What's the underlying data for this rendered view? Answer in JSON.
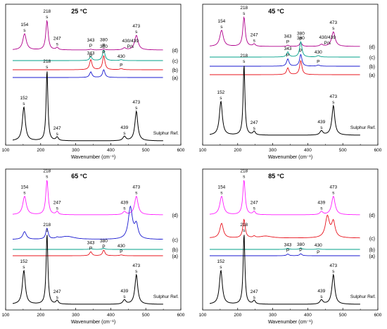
{
  "chart_data": [
    {
      "type": "line",
      "title": "25 °C",
      "xlabel": "Wavenumber (cm⁻¹)",
      "xlim": [
        100,
        600
      ],
      "xticks": [
        100,
        200,
        300,
        400,
        500,
        600
      ],
      "ref_label": "Sulphur Ref.",
      "traces": [
        {
          "label": "(d)",
          "color": "#b0008c",
          "peaks": [
            [
              154,
              0.42,
              6
            ],
            [
              218,
              0.76,
              4
            ],
            [
              247,
              0.06,
              4
            ],
            [
              343,
              0.02,
              4
            ],
            [
              380,
              0.03,
              4
            ],
            [
              439,
              0.05,
              5
            ],
            [
              473,
              0.38,
              6
            ]
          ],
          "annotations": [
            {
              "x": 154,
              "label": "s",
              "value": "154"
            },
            {
              "x": 218,
              "label": "s",
              "value": "218"
            },
            {
              "x": 247,
              "label": "s",
              "value": "247"
            },
            {
              "x": 343,
              "label": "P",
              "value": "343"
            },
            {
              "x": 380,
              "label": "P",
              "value": "380"
            },
            {
              "x": 456,
              "label": "P/s",
              "value": "430/439"
            },
            {
              "x": 473,
              "label": "s",
              "value": "473"
            }
          ]
        },
        {
          "label": "(c)",
          "color": "#00a08a",
          "peaks": [
            [
              343,
              0.14,
              4
            ],
            [
              380,
              0.38,
              4
            ],
            [
              430,
              0.03,
              5
            ]
          ],
          "annotations": [
            {
              "x": 343,
              "label": "",
              "value": "343"
            },
            {
              "x": 380,
              "label": "",
              "value": "380"
            },
            {
              "x": 430,
              "label": "",
              "value": "430"
            }
          ]
        },
        {
          "label": "(b)",
          "color": "#e8141e",
          "peaks": [
            [
              343,
              0.36,
              4
            ],
            [
              380,
              0.5,
              4
            ],
            [
              430,
              0.04,
              5
            ]
          ],
          "annotations": [
            {
              "x": 343,
              "label": "P",
              "value": ""
            },
            {
              "x": 380,
              "label": "P",
              "value": ""
            },
            {
              "x": 430,
              "label": "P",
              "value": ""
            }
          ]
        },
        {
          "label": "(a)",
          "color": "#1a1ad0",
          "peaks": [
            [
              343,
              0.2,
              4
            ],
            [
              380,
              0.28,
              4
            ]
          ],
          "annotations": []
        }
      ],
      "reference": {
        "color": "#000000",
        "peaks": [
          [
            152,
            0.48,
            5
          ],
          [
            218,
            1.0,
            3
          ],
          [
            247,
            0.05,
            4
          ],
          [
            439,
            0.06,
            5
          ],
          [
            473,
            0.42,
            5
          ]
        ],
        "annotations": [
          {
            "x": 152,
            "label": "s",
            "value": "152"
          },
          {
            "x": 218,
            "label": "s",
            "value": "218"
          },
          {
            "x": 247,
            "label": "s",
            "value": "247"
          },
          {
            "x": 439,
            "label": "s",
            "value": "439"
          },
          {
            "x": 473,
            "label": "s",
            "value": "473"
          }
        ]
      }
    },
    {
      "type": "line",
      "title": "45 °C",
      "xlabel": "Wavenumber (cm⁻¹)",
      "xlim": [
        100,
        600
      ],
      "xticks": [
        100,
        200,
        300,
        400,
        500,
        600
      ],
      "ref_label": "Sulphur Ref.",
      "traces": [
        {
          "label": "(d)",
          "color": "#b0008c",
          "peaks": [
            [
              154,
              0.42,
              6
            ],
            [
              218,
              0.76,
              4
            ],
            [
              247,
              0.06,
              4
            ],
            [
              343,
              0.03,
              4
            ],
            [
              380,
              0.1,
              4
            ],
            [
              439,
              0.05,
              5
            ],
            [
              473,
              0.38,
              6
            ]
          ],
          "annotations": [
            {
              "x": 154,
              "label": "s",
              "value": "154"
            },
            {
              "x": 218,
              "label": "s",
              "value": "218"
            },
            {
              "x": 247,
              "label": "s",
              "value": "247"
            },
            {
              "x": 343,
              "label": "P",
              "value": "343"
            },
            {
              "x": 380,
              "label": "P",
              "value": "380"
            },
            {
              "x": 456,
              "label": "P/s",
              "value": "430/439"
            },
            {
              "x": 473,
              "label": "s",
              "value": "473"
            }
          ]
        },
        {
          "label": "(c)",
          "color": "#00a08a",
          "peaks": [
            [
              343,
              0.18,
              4
            ],
            [
              380,
              0.55,
              4
            ],
            [
              430,
              0.05,
              5
            ]
          ],
          "annotations": [
            {
              "x": 343,
              "label": "",
              "value": "343"
            },
            {
              "x": 380,
              "label": "",
              "value": "380"
            },
            {
              "x": 430,
              "label": "",
              "value": "430"
            }
          ]
        },
        {
          "label": "(b)",
          "color": "#1a1ad0",
          "peaks": [
            [
              343,
              0.26,
              4
            ],
            [
              380,
              0.42,
              4
            ],
            [
              430,
              0.04,
              5
            ]
          ],
          "annotations": [
            {
              "x": 343,
              "label": "P",
              "value": ""
            },
            {
              "x": 380,
              "label": "P",
              "value": ""
            },
            {
              "x": 430,
              "label": "P",
              "value": ""
            }
          ]
        },
        {
          "label": "(a)",
          "color": "#e8141e",
          "peaks": [
            [
              343,
              0.24,
              4
            ],
            [
              380,
              0.5,
              4
            ]
          ],
          "annotations": []
        }
      ],
      "reference": {
        "color": "#000000",
        "peaks": [
          [
            152,
            0.48,
            5
          ],
          [
            218,
            1.0,
            3
          ],
          [
            247,
            0.05,
            4
          ],
          [
            439,
            0.06,
            5
          ],
          [
            473,
            0.42,
            5
          ]
        ],
        "annotations": [
          {
            "x": 152,
            "label": "s",
            "value": "152"
          },
          {
            "x": 218,
            "label": "s",
            "value": "218"
          },
          {
            "x": 247,
            "label": "s",
            "value": "247"
          },
          {
            "x": 439,
            "label": "s",
            "value": "439"
          },
          {
            "x": 473,
            "label": "s",
            "value": "473"
          }
        ]
      }
    },
    {
      "type": "line",
      "title": "65 °C",
      "xlabel": "Wavenumber (cm⁻¹)",
      "xlim": [
        100,
        600
      ],
      "xticks": [
        100,
        200,
        300,
        400,
        500,
        600
      ],
      "ref_label": "Sulphur Ref.",
      "traces": [
        {
          "label": "(d)",
          "color": "#ff1eff",
          "peaks": [
            [
              154,
              0.48,
              6
            ],
            [
              218,
              0.9,
              4
            ],
            [
              247,
              0.08,
              4
            ],
            [
              439,
              0.08,
              5
            ],
            [
              473,
              0.48,
              6
            ]
          ],
          "annotations": [
            {
              "x": 154,
              "label": "s",
              "value": "154"
            },
            {
              "x": 218,
              "label": "s",
              "value": "218"
            },
            {
              "x": 247,
              "label": "s",
              "value": "247"
            },
            {
              "x": 439,
              "label": "s",
              "value": "439"
            },
            {
              "x": 473,
              "label": "s",
              "value": "473"
            }
          ]
        },
        {
          "label": "(c)",
          "color": "#1a1ad0",
          "peaks": [
            [
              154,
              0.2,
              6
            ],
            [
              218,
              0.28,
              4
            ],
            [
              247,
              0.03,
              4
            ],
            [
              275,
              0.08,
              25
            ],
            [
              456,
              0.82,
              7
            ],
            [
              473,
              0.35,
              6
            ]
          ],
          "annotations": []
        },
        {
          "label": "(b)",
          "color": "#00a08a",
          "peaks": [
            [
              343,
              0.03,
              4
            ],
            [
              380,
              0.04,
              4
            ]
          ],
          "annotations": []
        },
        {
          "label": "(a)",
          "color": "#e8141e",
          "peaks": [
            [
              343,
              0.14,
              4
            ],
            [
              380,
              0.2,
              4
            ],
            [
              430,
              0.03,
              5
            ]
          ],
          "annotations": [
            {
              "x": 343,
              "label": "P",
              "value": "343"
            },
            {
              "x": 380,
              "label": "P",
              "value": "380"
            },
            {
              "x": 430,
              "label": "P",
              "value": "430"
            }
          ]
        }
      ],
      "reference": {
        "color": "#000000",
        "peaks": [
          [
            152,
            0.48,
            5
          ],
          [
            218,
            1.0,
            3
          ],
          [
            247,
            0.05,
            4
          ],
          [
            439,
            0.06,
            5
          ],
          [
            473,
            0.42,
            5
          ]
        ],
        "annotations": [
          {
            "x": 152,
            "label": "s",
            "value": "152"
          },
          {
            "x": 218,
            "label": "s",
            "value": "218"
          },
          {
            "x": 247,
            "label": "s",
            "value": "247"
          },
          {
            "x": 439,
            "label": "s",
            "value": "439"
          },
          {
            "x": 473,
            "label": "s",
            "value": "473"
          }
        ]
      }
    },
    {
      "type": "line",
      "title": "85 °C",
      "xlabel": "Wavenumber (cm⁻¹)",
      "xlim": [
        100,
        600
      ],
      "xticks": [
        100,
        200,
        300,
        400,
        500,
        600
      ],
      "ref_label": "Sulphur Ref.",
      "traces": [
        {
          "label": "(d)",
          "color": "#ff1eff",
          "peaks": [
            [
              154,
              0.48,
              6
            ],
            [
              218,
              0.9,
              4
            ],
            [
              247,
              0.08,
              4
            ],
            [
              439,
              0.08,
              5
            ],
            [
              473,
              0.48,
              6
            ]
          ],
          "annotations": [
            {
              "x": 154,
              "label": "s",
              "value": "154"
            },
            {
              "x": 218,
              "label": "s",
              "value": "218"
            },
            {
              "x": 247,
              "label": "s",
              "value": "247"
            },
            {
              "x": 439,
              "label": "s",
              "value": "439"
            },
            {
              "x": 473,
              "label": "s",
              "value": "473"
            }
          ]
        },
        {
          "label": "(c)",
          "color": "#e8141e",
          "peaks": [
            [
              154,
              0.38,
              6
            ],
            [
              218,
              0.48,
              4
            ],
            [
              247,
              0.04,
              4
            ],
            [
              280,
              0.05,
              20
            ],
            [
              456,
              0.55,
              7
            ],
            [
              473,
              0.4,
              6
            ]
          ],
          "annotations": []
        },
        {
          "label": "(b)",
          "color": "#00a08a",
          "peaks": [
            [
              343,
              0.04,
              4
            ],
            [
              380,
              0.05,
              4
            ],
            [
              430,
              0.02,
              5
            ]
          ],
          "annotations": [
            {
              "x": 343,
              "label": "",
              "value": "343"
            },
            {
              "x": 380,
              "label": "",
              "value": "380"
            },
            {
              "x": 430,
              "label": "",
              "value": "430"
            }
          ]
        },
        {
          "label": "(a)",
          "color": "#1a1ad0",
          "peaks": [
            [
              343,
              0.06,
              4
            ],
            [
              380,
              0.07,
              4
            ]
          ],
          "annotations": [
            {
              "x": 343,
              "label": "P",
              "value": ""
            },
            {
              "x": 380,
              "label": "P",
              "value": ""
            },
            {
              "x": 430,
              "label": "P",
              "value": ""
            }
          ]
        }
      ],
      "reference": {
        "color": "#000000",
        "peaks": [
          [
            152,
            0.48,
            5
          ],
          [
            218,
            1.0,
            3
          ],
          [
            247,
            0.05,
            4
          ],
          [
            439,
            0.06,
            5
          ],
          [
            473,
            0.42,
            5
          ]
        ],
        "annotations": [
          {
            "x": 152,
            "label": "s",
            "value": "152"
          },
          {
            "x": 218,
            "label": "s",
            "value": "218"
          },
          {
            "x": 247,
            "label": "s",
            "value": "247"
          },
          {
            "x": 439,
            "label": "s",
            "value": "439"
          },
          {
            "x": 473,
            "label": "s",
            "value": "473"
          }
        ]
      }
    }
  ]
}
